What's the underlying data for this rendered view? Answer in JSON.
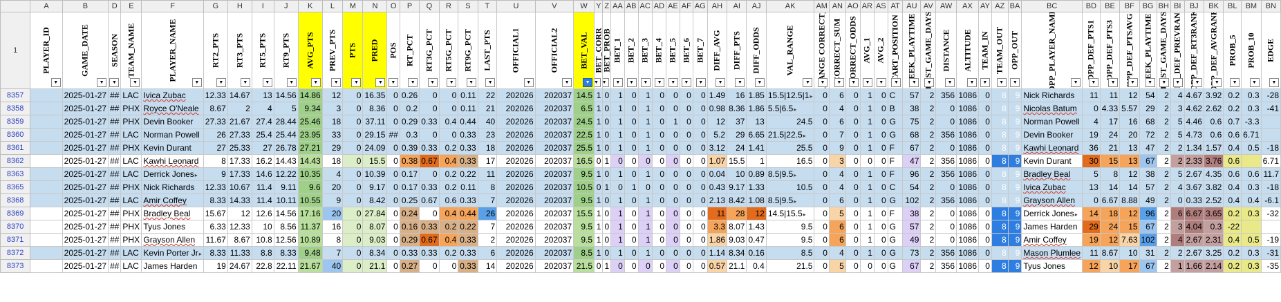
{
  "columns": [
    {
      "letter": "A",
      "header": "PLAYER_ID",
      "w": 48
    },
    {
      "letter": "B",
      "header": "GAME_DATE",
      "w": 62
    },
    {
      "letter": "D",
      "header": "SEASON",
      "w": 12
    },
    {
      "letter": "E",
      "header": "TEAM_NAME",
      "w": 30
    },
    {
      "letter": "F",
      "header": "PLAYER_NAME",
      "w": 80
    },
    {
      "letter": "G",
      "header": "RT2_PTS",
      "w": 32
    },
    {
      "letter": "H",
      "header": "RT3_PTS",
      "w": 32
    },
    {
      "letter": "I",
      "header": "RT5_PTS",
      "w": 32
    },
    {
      "letter": "J",
      "header": "RT9_PTS",
      "w": 32
    },
    {
      "letter": "K",
      "header": "AVG_PTS",
      "w": 30,
      "hl": true
    },
    {
      "letter": "L",
      "header": "PREV_PTS",
      "w": 30
    },
    {
      "letter": "M",
      "header": "PTS",
      "w": 30,
      "hl": true
    },
    {
      "letter": "N",
      "header": "PRED",
      "w": 30,
      "hl": true
    },
    {
      "letter": "O",
      "header": "POS",
      "w": 10
    },
    {
      "letter": "P",
      "header": "RT_PCT",
      "w": 28
    },
    {
      "letter": "Q",
      "header": "RT3G_PCT",
      "w": 28
    },
    {
      "letter": "R",
      "header": "RT5G_PCT",
      "w": 28
    },
    {
      "letter": "S",
      "header": "RT9G_PCT",
      "w": 28
    },
    {
      "letter": "T",
      "header": "LAST_PTS",
      "w": 28
    },
    {
      "letter": "U",
      "header": "OFFICIAL1",
      "w": 56
    },
    {
      "letter": "V",
      "header": "OFFICIAL2",
      "w": 56
    },
    {
      "letter": "W",
      "header": "BET_VAL",
      "w": 30,
      "hl": true,
      "active": true
    },
    {
      "letter": "Y",
      "header": "BET_CORR",
      "w": 10
    },
    {
      "letter": "Z",
      "header": "BET_PROB",
      "w": 10
    },
    {
      "letter": "AA",
      "header": "BET_1",
      "w": 10
    },
    {
      "letter": "AB",
      "header": "BET_2",
      "w": 10
    },
    {
      "letter": "AC",
      "header": "BET_3",
      "w": 10
    },
    {
      "letter": "AD",
      "header": "BET_4",
      "w": 10
    },
    {
      "letter": "AE",
      "header": "BET_5",
      "w": 10
    },
    {
      "letter": "AF",
      "header": "BET_6",
      "w": 10
    },
    {
      "letter": "AG",
      "header": "BET_7",
      "w": 10
    },
    {
      "letter": "AH",
      "header": "DIFF_AVG",
      "w": 26
    },
    {
      "letter": "AI",
      "header": "DIFF_PTS",
      "w": 26
    },
    {
      "letter": "AJ",
      "header": "DIFF_ODDS",
      "w": 26
    },
    {
      "letter": "AK",
      "header": "VAL_RANGE",
      "w": 56
    },
    {
      "letter": "AM",
      "header": "ODDS_RANGE CORRECT_PRED",
      "w": 18
    },
    {
      "letter": "AN",
      "header": "CORRECT_SUM",
      "w": 24
    },
    {
      "letter": "AO",
      "header": "CORRECT_ODDS",
      "w": 14
    },
    {
      "letter": "AR",
      "header": "AVG_1",
      "w": 10
    },
    {
      "letter": "AS",
      "header": "AVG_2",
      "w": 10
    },
    {
      "letter": "AT",
      "header": "START_POSITION",
      "w": 22
    },
    {
      "letter": "AU",
      "header": "WEEK_PLAYTIME",
      "w": 26
    },
    {
      "letter": "AV",
      "header": "LAST_GAME_DAYS",
      "w": 22
    },
    {
      "letter": "AW",
      "header": "DISTANCE",
      "w": 30
    },
    {
      "letter": "AX",
      "header": "ALTITUDE",
      "w": 32
    },
    {
      "letter": "AY",
      "header": "TEAM_IN",
      "w": 8
    },
    {
      "letter": "AZ",
      "header": "TEAM_OUT",
      "w": 24
    },
    {
      "letter": "BA",
      "header": "OPP_OUT",
      "w": 14
    },
    {
      "letter": "BC",
      "header": "OPP_PLAYER_NAME",
      "w": 76
    },
    {
      "letter": "BD",
      "header": "OPP_DEF_PTS1",
      "w": 26
    },
    {
      "letter": "BE",
      "header": "OPP_DEF_PTS3",
      "w": 26
    },
    {
      "letter": "BF",
      "header": "OPP_DEF_PTSAVG",
      "w": 26
    },
    {
      "letter": "BG",
      "header": "WEEK_PLAYTIME",
      "w": 24
    },
    {
      "letter": "BH",
      "header": "LAST_GAME_DAYS",
      "w": 14
    },
    {
      "letter": "BI",
      "header": "OPP_DEF_PREVRANK",
      "w": 20
    },
    {
      "letter": "BJ",
      "header": "OPP_DEF_RT3RANK",
      "w": 20
    },
    {
      "letter": "BK",
      "header": "OPP_DEF_AVGRANK",
      "w": 26
    },
    {
      "letter": "BL",
      "header": "PROB_5",
      "w": 26
    },
    {
      "letter": "BM",
      "header": "PROB_10",
      "w": 24
    },
    {
      "letter": "BN",
      "header": "EDGE",
      "w": 26
    }
  ],
  "header_row_number": "1",
  "rows": [
    {
      "n": "8357",
      "sel": true,
      "v": [
        "",
        "2025-01-27",
        "##",
        "LAC",
        "Ivica Zubac",
        "12.33",
        "14.67",
        "13",
        "14.56",
        "14.86",
        "12",
        "0",
        "16.35",
        "0",
        "0.26",
        "0",
        "0",
        "0.11",
        "22",
        "202026",
        "202037",
        "14.5",
        "1",
        "0",
        "1",
        "0",
        "1",
        "0",
        "0",
        "0",
        "0",
        "1.49",
        "16",
        "1.85",
        "15.5|12.5|1",
        "0",
        "6",
        "0",
        "1",
        "0",
        "C",
        "57",
        "2",
        "356",
        "1086",
        "0",
        "8",
        "9",
        "Nick Richards",
        "11",
        "11",
        "12",
        "54",
        "2",
        "4",
        "4.67",
        "3.92",
        "0.2",
        "0.3",
        "-28"
      ]
    },
    {
      "n": "8358",
      "sel": true,
      "v": [
        "",
        "2025-01-27",
        "##",
        "PHX",
        "Royce O'Neale",
        "8.67",
        "2",
        "4",
        "5",
        "9.34",
        "3",
        "0",
        "8.36",
        "0",
        "0.2",
        "0",
        "0",
        "0.11",
        "21",
        "202026",
        "202037",
        "6.5",
        "1",
        "0",
        "1",
        "0",
        "1",
        "0",
        "0",
        "0",
        "0",
        "0.98",
        "8.36",
        "1.86",
        "5.5|6.5",
        "0",
        "4",
        "0",
        "1",
        "0",
        "B",
        "38",
        "2",
        "0",
        "1086",
        "0",
        "8",
        "9",
        "Nicolas Batum",
        "0",
        "4.33",
        "5.57",
        "29",
        "2",
        "3",
        "4.62",
        "2.62",
        "0.2",
        "0.3",
        "-41"
      ]
    },
    {
      "n": "8359",
      "sel": true,
      "v": [
        "",
        "2025-01-27",
        "##",
        "PHX",
        "Devin Booker",
        "27.33",
        "21.67",
        "27.4",
        "28.44",
        "25.46",
        "18",
        "0",
        "37.11",
        "0",
        "0.29",
        "0.33",
        "0.4",
        "0.44",
        "40",
        "202026",
        "202037",
        "24.5",
        "1",
        "0",
        "1",
        "0",
        "1",
        "0",
        "1",
        "0",
        "0",
        "12",
        "37",
        "13",
        "24.5",
        "0",
        "6",
        "0",
        "1",
        "0",
        "G",
        "75",
        "2",
        "0",
        "1086",
        "0",
        "8",
        "9",
        "Norman Powell",
        "4",
        "17",
        "16",
        "68",
        "2",
        "5",
        "4.46",
        "0.6",
        "0.7",
        "-3.3",
        ""
      ]
    },
    {
      "n": "8360",
      "sel": true,
      "v": [
        "",
        "2025-01-27",
        "##",
        "LAC",
        "Norman Powell",
        "26",
        "27.33",
        "25.4",
        "25.44",
        "23.95",
        "33",
        "0",
        "29.15",
        "##",
        "0.3",
        "0",
        "0",
        "0.33",
        "23",
        "202026",
        "202037",
        "22.5",
        "1",
        "0",
        "1",
        "0",
        "1",
        "0",
        "0",
        "0",
        "0",
        "5.2",
        "29",
        "6.65",
        "21.5|22.5",
        "0",
        "7",
        "0",
        "1",
        "0",
        "G",
        "68",
        "2",
        "356",
        "1086",
        "0",
        "8",
        "9",
        "Devin Booker",
        "19",
        "24",
        "20",
        "72",
        "2",
        "5",
        "4.73",
        "0.6",
        "0.6",
        "6.71",
        ""
      ]
    },
    {
      "n": "8361",
      "sel": true,
      "v": [
        "",
        "2025-01-27",
        "##",
        "PHX",
        "Kevin Durant",
        "27",
        "25.33",
        "27",
        "26.78",
        "27.21",
        "29",
        "0",
        "24.09",
        "0",
        "0.39",
        "0.33",
        "0.2",
        "0.33",
        "18",
        "202026",
        "202037",
        "25.5",
        "1",
        "0",
        "1",
        "0",
        "1",
        "0",
        "0",
        "0",
        "0",
        "3.12",
        "24",
        "1.41",
        "25.5",
        "0",
        "9",
        "0",
        "1",
        "0",
        "F",
        "67",
        "2",
        "0",
        "1086",
        "0",
        "8",
        "9",
        "Kawhi Leonard",
        "36",
        "21",
        "13",
        "47",
        "2",
        "2",
        "1.34",
        "1.57",
        "0.4",
        "0.5",
        "-18"
      ]
    },
    {
      "n": "8362",
      "sel": false,
      "v": [
        "",
        "2025-01-27",
        "##",
        "LAC",
        "Kawhi Leonard",
        "8",
        "17.33",
        "16.2",
        "14.43",
        "14.43",
        "18",
        "0",
        "15.5",
        "0",
        "0.38",
        "0.67",
        "0.4",
        "0.33",
        "17",
        "202026",
        "202037",
        "16.5",
        "0",
        "1",
        "0",
        "0",
        "0",
        "0",
        "0",
        "0",
        "0",
        "1.07",
        "15.5",
        "1",
        "16.5",
        "0",
        "3",
        "0",
        "0",
        "0",
        "F",
        "47",
        "2",
        "356",
        "1086",
        "0",
        "8",
        "9",
        "Kevin Durant",
        "30",
        "15",
        "13",
        "67",
        "2",
        "2",
        "2.33",
        "3.76",
        "0.6",
        "",
        "6.71"
      ]
    },
    {
      "n": "8363",
      "sel": true,
      "v": [
        "",
        "2025-01-27",
        "##",
        "LAC",
        "Derrick Jones",
        "9",
        "17.33",
        "14.6",
        "12.22",
        "10.35",
        "4",
        "0",
        "10.39",
        "0",
        "0.17",
        "0",
        "0.2",
        "0.22",
        "11",
        "202026",
        "202037",
        "9.5",
        "1",
        "0",
        "1",
        "0",
        "1",
        "0",
        "0",
        "0",
        "0",
        "0.04",
        "10",
        "0.89",
        "8.5|9.5",
        "0",
        "4",
        "0",
        "1",
        "0",
        "F",
        "96",
        "2",
        "356",
        "1086",
        "0",
        "8",
        "9",
        "Bradley Beal",
        "5",
        "8",
        "12",
        "38",
        "2",
        "5",
        "2.67",
        "4.35",
        "0.6",
        "0.6",
        "11.7"
      ]
    },
    {
      "n": "8365",
      "sel": true,
      "v": [
        "",
        "2025-01-27",
        "##",
        "PHX",
        "Nick Richards",
        "12.33",
        "10.67",
        "11.4",
        "9.11",
        "9.6",
        "20",
        "0",
        "9.17",
        "0",
        "0.17",
        "0.33",
        "0.2",
        "0.11",
        "8",
        "202026",
        "202037",
        "10.5",
        "0",
        "1",
        "0",
        "1",
        "0",
        "0",
        "0",
        "0",
        "0",
        "0.43",
        "9.17",
        "1.33",
        "10.5",
        "0",
        "4",
        "0",
        "1",
        "0",
        "C",
        "54",
        "2",
        "0",
        "1086",
        "0",
        "8",
        "9",
        "Ivica Zubac",
        "13",
        "14",
        "14",
        "57",
        "2",
        "4",
        "3.67",
        "3.82",
        "0.4",
        "0.3",
        "-18"
      ]
    },
    {
      "n": "8368",
      "sel": true,
      "v": [
        "",
        "2025-01-27",
        "##",
        "LAC",
        "Amir Coffey",
        "8.33",
        "14.33",
        "11.4",
        "10.11",
        "10.55",
        "9",
        "0",
        "8.42",
        "0",
        "0.25",
        "0.67",
        "0.6",
        "0.33",
        "7",
        "202026",
        "202037",
        "9.5",
        "1",
        "0",
        "1",
        "0",
        "1",
        "0",
        "0",
        "0",
        "0",
        "2.13",
        "8.42",
        "1.08",
        "8.5|9.5",
        "0",
        "6",
        "0",
        "1",
        "0",
        "G",
        "102",
        "2",
        "356",
        "1086",
        "0",
        "8",
        "9",
        "Grayson Allen",
        "0",
        "6.67",
        "8.88",
        "49",
        "2",
        "0",
        "0.33",
        "2.52",
        "0.4",
        "0.4",
        "-6.1"
      ]
    },
    {
      "n": "8369",
      "sel": false,
      "v": [
        "",
        "2025-01-27",
        "##",
        "PHX",
        "Bradley Beal",
        "15.67",
        "12",
        "12.6",
        "14.56",
        "17.16",
        "20",
        "0",
        "27.84",
        "0",
        "0.24",
        "0",
        "0.4",
        "0.44",
        "26",
        "202026",
        "202037",
        "15.5",
        "1",
        "0",
        "1",
        "0",
        "1",
        "0",
        "0",
        "0",
        "0",
        "11",
        "28",
        "12",
        "14.5|15.5",
        "0",
        "5",
        "0",
        "1",
        "0",
        "F",
        "38",
        "2",
        "0",
        "1086",
        "0",
        "8",
        "9",
        "Derrick Jones",
        "14",
        "18",
        "12",
        "96",
        "2",
        "6",
        "6.67",
        "3.65",
        "0.2",
        "0.3",
        "-32"
      ]
    },
    {
      "n": "8370",
      "sel": false,
      "v": [
        "",
        "2025-01-27",
        "##",
        "PHX",
        "Tyus Jones",
        "6.33",
        "12.33",
        "10",
        "8.56",
        "11.37",
        "16",
        "0",
        "8.07",
        "0",
        "0.16",
        "0.33",
        "0.2",
        "0.22",
        "7",
        "202026",
        "202037",
        "9.5",
        "1",
        "0",
        "1",
        "0",
        "1",
        "0",
        "0",
        "0",
        "0",
        "3.3",
        "8.07",
        "1.43",
        "9.5",
        "0",
        "6",
        "0",
        "1",
        "0",
        "G",
        "57",
        "2",
        "0",
        "1086",
        "0",
        "8",
        "9",
        "James Harden",
        "29",
        "24",
        "15",
        "67",
        "2",
        "3",
        "4.04",
        "0.3",
        "-22",
        ""
      ]
    },
    {
      "n": "8371",
      "sel": false,
      "v": [
        "",
        "2025-01-27",
        "##",
        "PHX",
        "Grayson Allen",
        "11.67",
        "8.67",
        "10.8",
        "12.56",
        "10.89",
        "8",
        "0",
        "9.03",
        "0",
        "0.29",
        "0.67",
        "0.4",
        "0.33",
        "2",
        "202026",
        "202037",
        "9.5",
        "1",
        "0",
        "1",
        "0",
        "1",
        "0",
        "0",
        "0",
        "0",
        "1.86",
        "9.03",
        "0.47",
        "9.5",
        "0",
        "6",
        "0",
        "1",
        "0",
        "G",
        "49",
        "2",
        "0",
        "1086",
        "0",
        "8",
        "9",
        "Amir Coffey",
        "19",
        "12",
        "7.63",
        "102",
        "2",
        "4",
        "2.67",
        "2.31",
        "0.4",
        "0.5",
        "-19"
      ]
    },
    {
      "n": "8372",
      "sel": true,
      "v": [
        "",
        "2025-01-27",
        "##",
        "LAC",
        "Kevin Porter Jr",
        "8.33",
        "11.33",
        "8.8",
        "8.33",
        "9.48",
        "7",
        "0",
        "8.34",
        "0",
        "0.33",
        "0.33",
        "0.2",
        "0.33",
        "6",
        "202026",
        "202037",
        "8.5",
        "1",
        "0",
        "1",
        "0",
        "1",
        "0",
        "0",
        "0",
        "0",
        "1.14",
        "8.34",
        "0.16",
        "8.5",
        "0",
        "4",
        "0",
        "1",
        "0",
        "G",
        "73",
        "2",
        "356",
        "1086",
        "0",
        "8",
        "9",
        "Mason Plumlee",
        "11",
        "8.67",
        "10",
        "31",
        "2",
        "2",
        "2.67",
        "3.25",
        "0.2",
        "0.3",
        "-31"
      ]
    },
    {
      "n": "8373",
      "sel": false,
      "v": [
        "",
        "2025-01-27",
        "##",
        "LAC",
        "James Harden",
        "19",
        "24.67",
        "22.8",
        "22.11",
        "21.67",
        "40",
        "0",
        "21.1",
        "0",
        "0.27",
        "0",
        "0",
        "0.33",
        "14",
        "202026",
        "202037",
        "21.5",
        "0",
        "1",
        "0",
        "0",
        "0",
        "0",
        "0",
        "0",
        "0",
        "0.57",
        "21.1",
        "0.4",
        "21.5",
        "0",
        "5",
        "0",
        "0",
        "0",
        "G",
        "67",
        "2",
        "356",
        "1086",
        "0",
        "8",
        "9",
        "Tyus Jones",
        "12",
        "10",
        "17",
        "67",
        "2",
        "1",
        "1.66",
        "2.14",
        "0.2",
        "0.3",
        "-35"
      ]
    }
  ]
}
